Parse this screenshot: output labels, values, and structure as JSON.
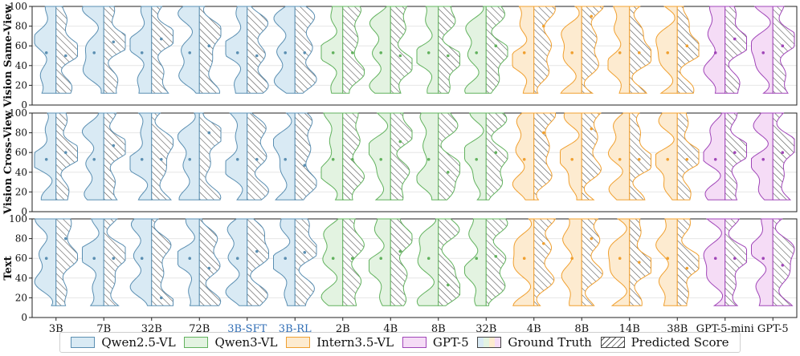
{
  "chart_data": {
    "type": "violin",
    "categories": [
      "3B",
      "7B",
      "32B",
      "72B",
      "3B-SFT",
      "3B-RL",
      "2B",
      "4B",
      "8B",
      "32B",
      "4B",
      "8B",
      "14B",
      "38B",
      "GPT-5-mini",
      "GPT-5"
    ],
    "category_family": [
      "Qwen2.5-VL",
      "Qwen2.5-VL",
      "Qwen2.5-VL",
      "Qwen2.5-VL",
      "Qwen2.5-VL",
      "Qwen2.5-VL",
      "Qwen3-VL",
      "Qwen3-VL",
      "Qwen3-VL",
      "Qwen3-VL",
      "Intern3.5-VL",
      "Intern3.5-VL",
      "Intern3.5-VL",
      "Intern3.5-VL",
      "GPT-5",
      "GPT-5"
    ],
    "highlight_categories": [
      "3B-SFT",
      "3B-RL"
    ],
    "families": [
      {
        "name": "Qwen2.5-VL",
        "fill": "#d9eaf4",
        "stroke": "#5b8fb2"
      },
      {
        "name": "Qwen3-VL",
        "fill": "#e3f3e1",
        "stroke": "#62b25e"
      },
      {
        "name": "Intern3.5-VL",
        "fill": "#fdebd0",
        "stroke": "#f0a030"
      },
      {
        "name": "GPT-5",
        "fill": "#f5dcf6",
        "stroke": "#a046b8"
      }
    ],
    "highlight_color": "#2f6db5",
    "ylim": [
      0,
      100
    ],
    "yticks": [
      0,
      20,
      40,
      60,
      80,
      100
    ],
    "grid": true,
    "panels": [
      {
        "ylabel": "Vision Same-View",
        "gt_median": [
          53,
          53,
          53,
          53,
          53,
          53,
          53,
          53,
          53,
          53,
          53,
          53,
          53,
          53,
          53,
          53
        ],
        "pred_median": [
          50,
          64,
          67,
          60,
          50,
          53,
          53,
          50,
          50,
          60,
          80,
          90,
          53,
          60,
          67,
          60
        ]
      },
      {
        "ylabel": "Vision Cross-View",
        "gt_median": [
          53,
          53,
          53,
          53,
          53,
          53,
          53,
          53,
          53,
          53,
          53,
          53,
          53,
          53,
          53,
          53
        ],
        "pred_median": [
          60,
          67,
          53,
          80,
          53,
          47,
          53,
          71,
          40,
          60,
          80,
          84,
          53,
          53,
          60,
          60
        ]
      },
      {
        "ylabel": "Text",
        "gt_median": [
          60,
          60,
          60,
          60,
          60,
          60,
          60,
          60,
          60,
          60,
          60,
          60,
          60,
          60,
          60,
          60
        ],
        "pred_median": [
          80,
          60,
          20,
          50,
          67,
          66,
          60,
          67,
          33,
          62,
          75,
          80,
          56,
          50,
          60,
          53
        ]
      }
    ],
    "legend": {
      "items": [
        "Qwen2.5-VL",
        "Qwen3-VL",
        "Intern3.5-VL",
        "GPT-5",
        "Ground Truth",
        "Predicted Score"
      ],
      "location": "bottom"
    }
  }
}
